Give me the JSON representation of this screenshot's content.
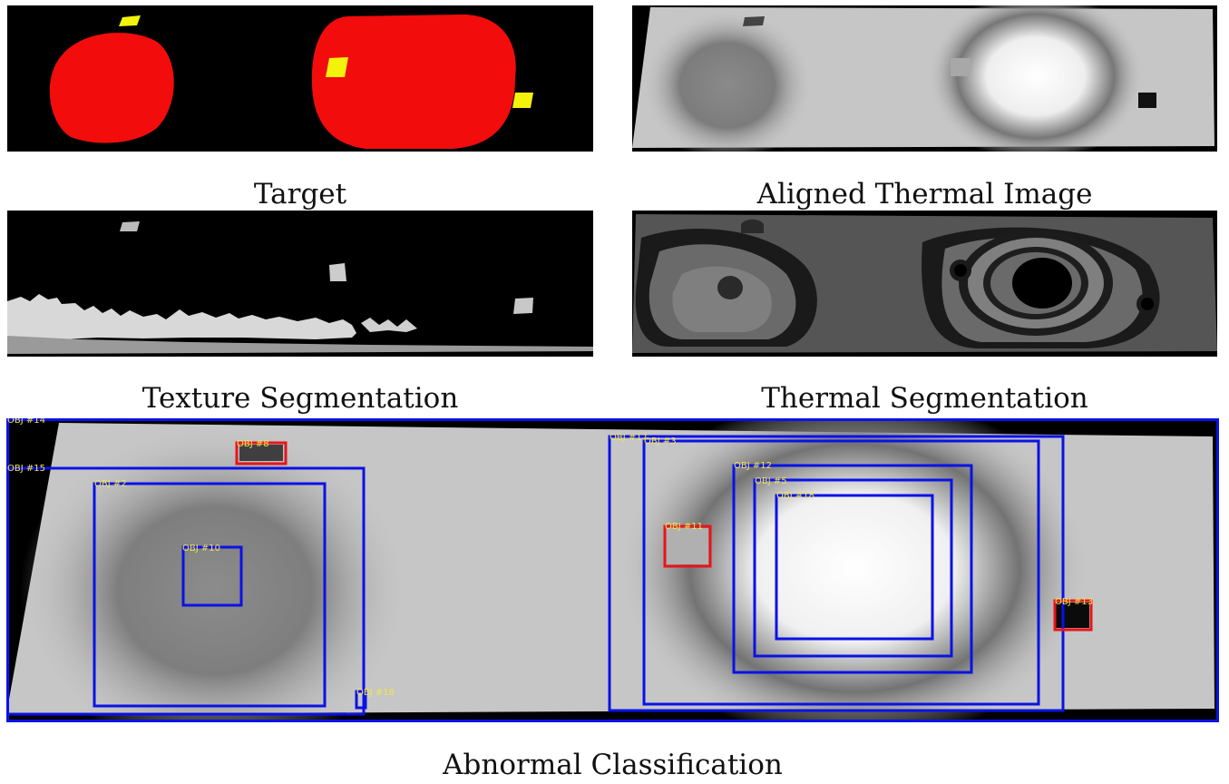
{
  "captions": {
    "target": "Target",
    "aligned_thermal": "Aligned Thermal Image",
    "texture_seg": "Texture Segmentation",
    "thermal_seg": "Thermal Segmentation",
    "abnormal": "Abnormal Classification"
  },
  "colors": {
    "background": "#000000",
    "target_blob": "#f20c0c",
    "target_patch": "#f2f20c",
    "box_blue": "#0a12e6",
    "box_red": "#e8141a",
    "label_yellow": "#f4e64a"
  },
  "objects": [
    {
      "label": "OBJ #14",
      "class": "blue"
    },
    {
      "label": "OBJ #15",
      "class": "blue"
    },
    {
      "label": "OBJ #8",
      "class": "red"
    },
    {
      "label": "OBJ #2",
      "class": "blue"
    },
    {
      "label": "OBJ #10",
      "class": "blue"
    },
    {
      "label": "OBJ #16",
      "class": "blue"
    },
    {
      "label": "OBJ #17",
      "class": "blue"
    },
    {
      "label": "OBJ #3",
      "class": "blue"
    },
    {
      "label": "OBJ #12",
      "class": "blue"
    },
    {
      "label": "OBJ #5",
      "class": "blue"
    },
    {
      "label": "OBJ #18",
      "class": "blue"
    },
    {
      "label": "OBJ #11",
      "class": "red"
    },
    {
      "label": "OBJ #13",
      "class": "red"
    }
  ]
}
